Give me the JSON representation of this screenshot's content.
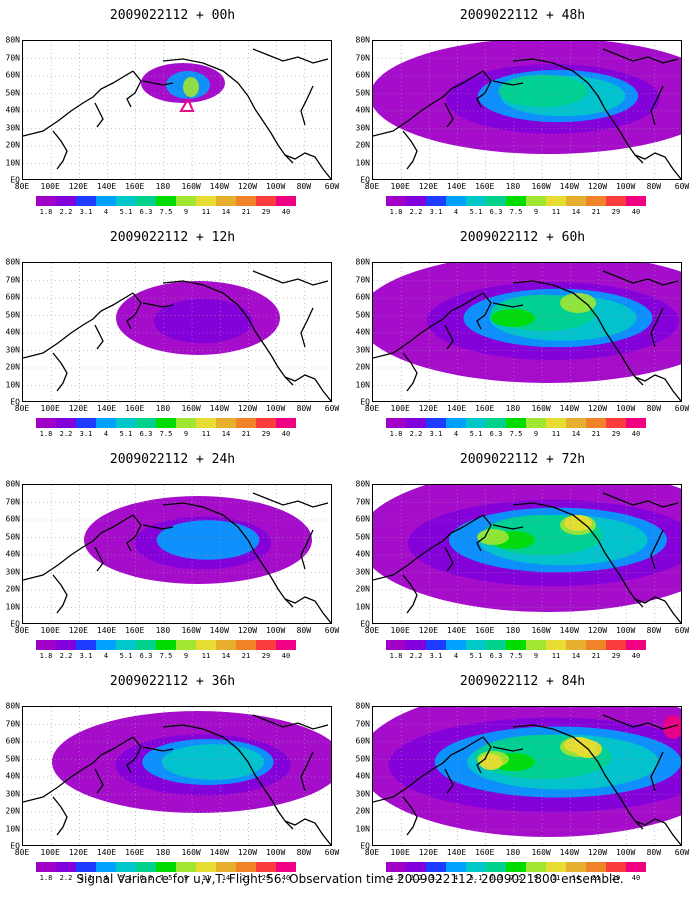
{
  "panels": [
    {
      "title": "2009022112 + 00h",
      "intensity": 0
    },
    {
      "title": "2009022112 + 48h",
      "intensity": 4
    },
    {
      "title": "2009022112 + 12h",
      "intensity": 1
    },
    {
      "title": "2009022112 + 60h",
      "intensity": 5
    },
    {
      "title": "2009022112 + 24h",
      "intensity": 2
    },
    {
      "title": "2009022112 + 72h",
      "intensity": 6
    },
    {
      "title": "2009022112 + 36h",
      "intensity": 3
    },
    {
      "title": "2009022112 + 84h",
      "intensity": 7
    }
  ],
  "lat_labels": [
    "80N",
    "70N",
    "60N",
    "50N",
    "40N",
    "30N",
    "20N",
    "10N",
    "EQ"
  ],
  "lon_labels": [
    "80E",
    "100E",
    "120E",
    "140E",
    "160E",
    "180",
    "160W",
    "140W",
    "120W",
    "100W",
    "80W",
    "60W"
  ],
  "colorbar": {
    "labels": [
      "1.8",
      "2.2",
      "3.1",
      "4",
      "5.1",
      "6.3",
      "7.5",
      "9",
      "11",
      "14",
      "21",
      "29",
      "40"
    ],
    "colors": [
      "#a000c8",
      "#8200dc",
      "#1e3cff",
      "#00a0ff",
      "#00c8c8",
      "#00d28c",
      "#00dc00",
      "#a0e632",
      "#e6dc32",
      "#e6af2d",
      "#f08228",
      "#fa3c3c",
      "#f00082"
    ]
  },
  "footer": "Signal Variance for u,v,T. Flight 56. Observation time 2009022112. 2009021800 ensemble."
}
